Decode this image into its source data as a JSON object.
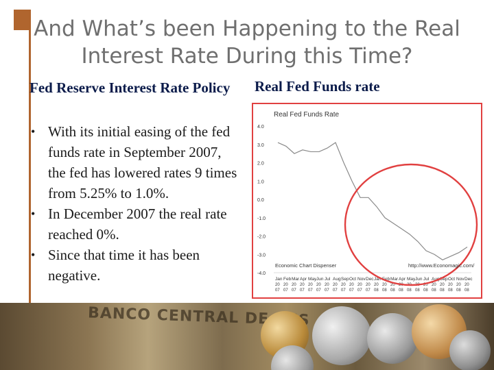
{
  "slide": {
    "title": "And What’s been Happening to the Real Interest Rate During this Time?"
  },
  "left": {
    "heading": "Fed Reserve Interest Rate Policy",
    "bullets": [
      "With its initial easing of the fed funds rate in September 2007, the fed has lowered rates 9 times from 5.25% to 1.0%.",
      "In December 2007 the real rate reached 0%.",
      "Since that time it has been negative."
    ]
  },
  "right": {
    "heading": "Real Fed Funds rate"
  },
  "footer_image": {
    "banknote_text": "BANCO CENTRAL DE RES"
  },
  "colors": {
    "accent": "#b0652e",
    "heading": "#0b1b4a",
    "title": "#6f6f6f",
    "highlight_circle": "#e14040",
    "series_line": "#8a8a8a"
  },
  "chart_data": {
    "type": "line",
    "title": "Real Fed Funds Rate",
    "source_left": "Economic Chart Dispenser",
    "source_right": "http://www.Economagic.com/",
    "ylim": [
      -4.0,
      4.0
    ],
    "y_ticks": [
      "4.0",
      "3.0",
      "2.0",
      "1.0",
      "0.0",
      "-1.0",
      "-2.0",
      "-3.0",
      "-4.0"
    ],
    "x_month_labels": [
      "Jan",
      "Feb",
      "Mar",
      "Apr",
      "May",
      "Jun",
      "Jul",
      "Aug",
      "Sep",
      "Oct",
      "Nov",
      "Dec",
      "Jan",
      "Feb",
      "Mar",
      "Apr",
      "May",
      "Jun",
      "Jul",
      "Aug",
      "Sep",
      "Oct",
      "Nov",
      "Dec"
    ],
    "x_day_labels": [
      "20",
      "20",
      "20",
      "20",
      "20",
      "20",
      "20",
      "20",
      "20",
      "20",
      "20",
      "20",
      "20",
      "20",
      "20",
      "20",
      "20",
      "20",
      "20",
      "20",
      "20",
      "20",
      "20",
      "20"
    ],
    "x_year_labels": [
      "07",
      "07",
      "07",
      "07",
      "07",
      "07",
      "07",
      "07",
      "07",
      "07",
      "07",
      "07",
      "08",
      "08",
      "08",
      "08",
      "08",
      "08",
      "08",
      "08",
      "08",
      "08",
      "08",
      "08"
    ],
    "series": [
      {
        "values": [
          3.1,
          2.9,
          2.5,
          2.7,
          2.6,
          2.6,
          2.8,
          3.1,
          2.0,
          1.0,
          0.1,
          0.1,
          -0.4,
          -1.0,
          -1.3,
          -1.6,
          -1.9,
          -2.3,
          -2.8,
          -3.0,
          -3.3,
          -3.1,
          -2.9,
          -2.6
        ]
      }
    ],
    "highlight": "ellipse around Nov 07 to Dec 08"
  }
}
